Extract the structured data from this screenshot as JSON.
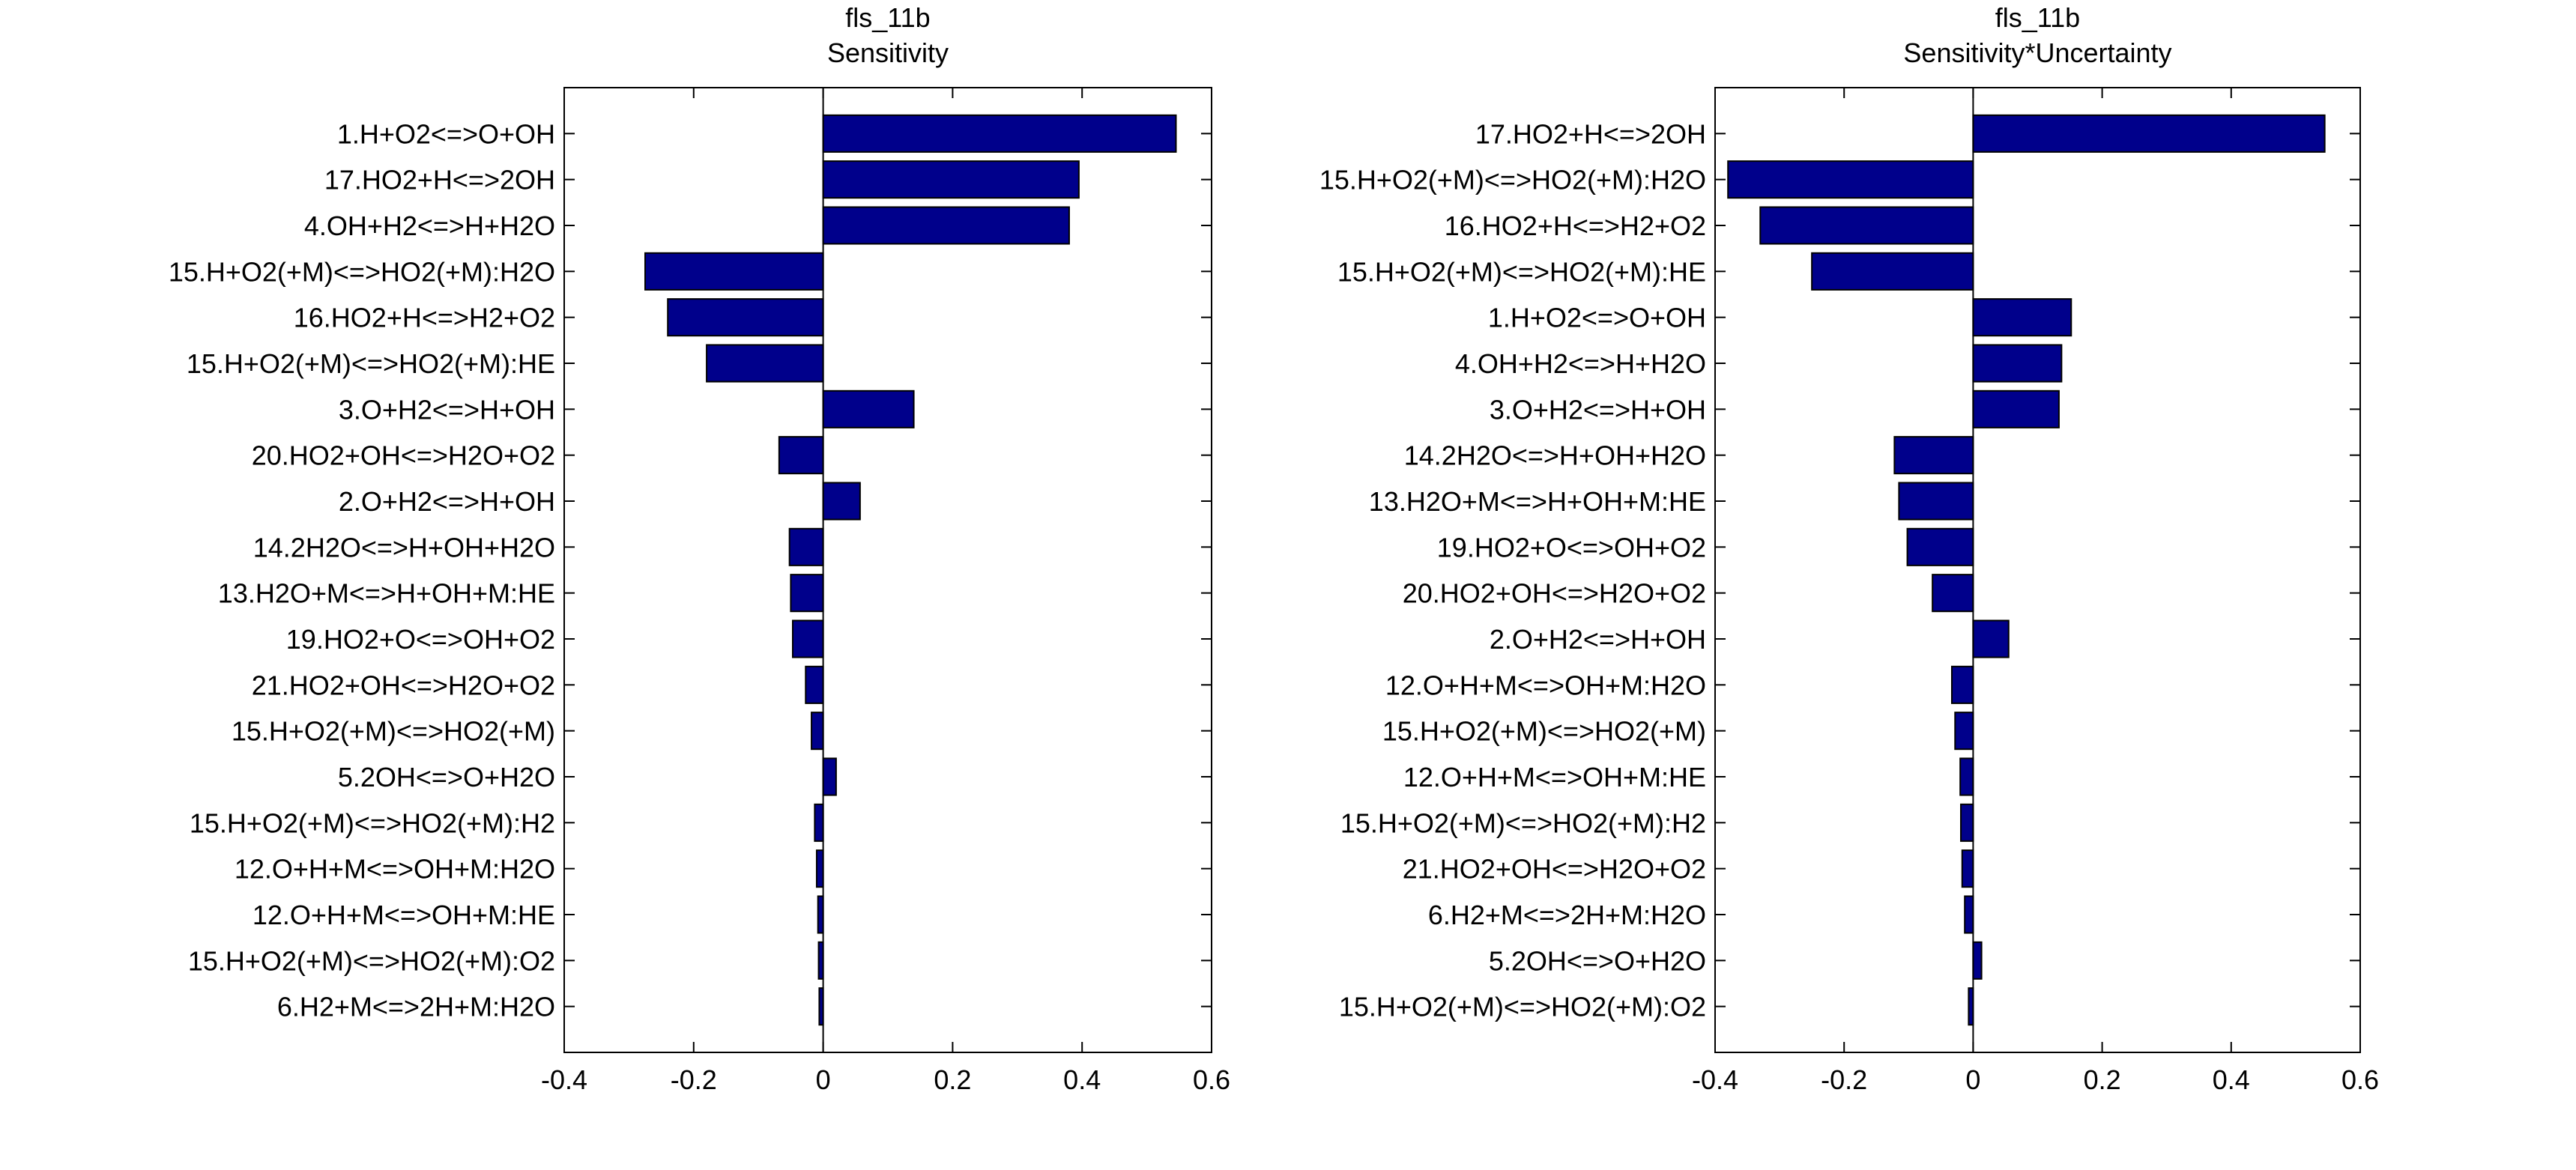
{
  "figure": {
    "background": "#ffffff"
  },
  "chart_data": [
    {
      "type": "bar",
      "orientation": "horizontal",
      "title": "fls_11b",
      "subtitle": "Sensitivity",
      "xlim": [
        -0.4,
        0.6
      ],
      "xticks": [
        -0.4,
        -0.2,
        0,
        0.2,
        0.4,
        0.6
      ],
      "xtick_labels": [
        "-0.4",
        "-0.2",
        "0",
        "0.2",
        "0.4",
        "0.6"
      ],
      "grid": false,
      "bar_color": "#00008b",
      "categories": [
        "1.H+O2<=>O+OH",
        "17.HO2+H<=>2OH",
        "4.OH+H2<=>H+H2O",
        "15.H+O2(+M)<=>HO2(+M):H2O",
        "16.HO2+H<=>H2+O2",
        "15.H+O2(+M)<=>HO2(+M):HE",
        "3.O+H2<=>H+OH",
        "20.HO2+OH<=>H2O+O2",
        "2.O+H2<=>H+OH",
        "14.2H2O<=>H+OH+H2O",
        "13.H2O+M<=>H+OH+M:HE",
        "19.HO2+O<=>OH+O2",
        "21.HO2+OH<=>H2O+O2",
        "15.H+O2(+M)<=>HO2(+M)",
        "5.2OH<=>O+H2O",
        "15.H+O2(+M)<=>HO2(+M):H2",
        "12.O+H+M<=>OH+M:H2O",
        "12.O+H+M<=>OH+M:HE",
        "15.H+O2(+M)<=>HO2(+M):O2",
        "6.H2+M<=>2H+M:H2O"
      ],
      "values": [
        0.545,
        0.395,
        0.38,
        -0.275,
        -0.24,
        -0.18,
        0.14,
        -0.068,
        0.057,
        -0.052,
        -0.05,
        -0.047,
        -0.027,
        -0.018,
        0.02,
        -0.013,
        -0.01,
        -0.008,
        -0.007,
        -0.006
      ]
    },
    {
      "type": "bar",
      "orientation": "horizontal",
      "title": "fls_11b",
      "subtitle": "Sensitivity*Uncertainty",
      "xlim": [
        -0.4,
        0.6
      ],
      "xticks": [
        -0.4,
        -0.2,
        0,
        0.2,
        0.4,
        0.6
      ],
      "xtick_labels": [
        "-0.4",
        "-0.2",
        "0",
        "0.2",
        "0.4",
        "0.6"
      ],
      "grid": false,
      "bar_color": "#00008b",
      "categories": [
        "17.HO2+H<=>2OH",
        "15.H+O2(+M)<=>HO2(+M):H2O",
        "16.HO2+H<=>H2+O2",
        "15.H+O2(+M)<=>HO2(+M):HE",
        "1.H+O2<=>O+OH",
        "4.OH+H2<=>H+H2O",
        "3.O+H2<=>H+OH",
        "14.2H2O<=>H+OH+H2O",
        "13.H2O+M<=>H+OH+M:HE",
        "19.HO2+O<=>OH+O2",
        "20.HO2+OH<=>H2O+O2",
        "2.O+H2<=>H+OH",
        "12.O+H+M<=>OH+M:H2O",
        "15.H+O2(+M)<=>HO2(+M)",
        "12.O+H+M<=>OH+M:HE",
        "15.H+O2(+M)<=>HO2(+M):H2",
        "21.HO2+OH<=>H2O+O2",
        "6.H2+M<=>2H+M:H2O",
        "5.2OH<=>O+H2O",
        "15.H+O2(+M)<=>HO2(+M):O2"
      ],
      "values": [
        0.545,
        -0.38,
        -0.33,
        -0.25,
        0.152,
        0.137,
        0.133,
        -0.122,
        -0.115,
        -0.102,
        -0.063,
        0.055,
        -0.033,
        -0.028,
        -0.02,
        -0.019,
        -0.017,
        -0.013,
        0.013,
        -0.007
      ]
    }
  ]
}
